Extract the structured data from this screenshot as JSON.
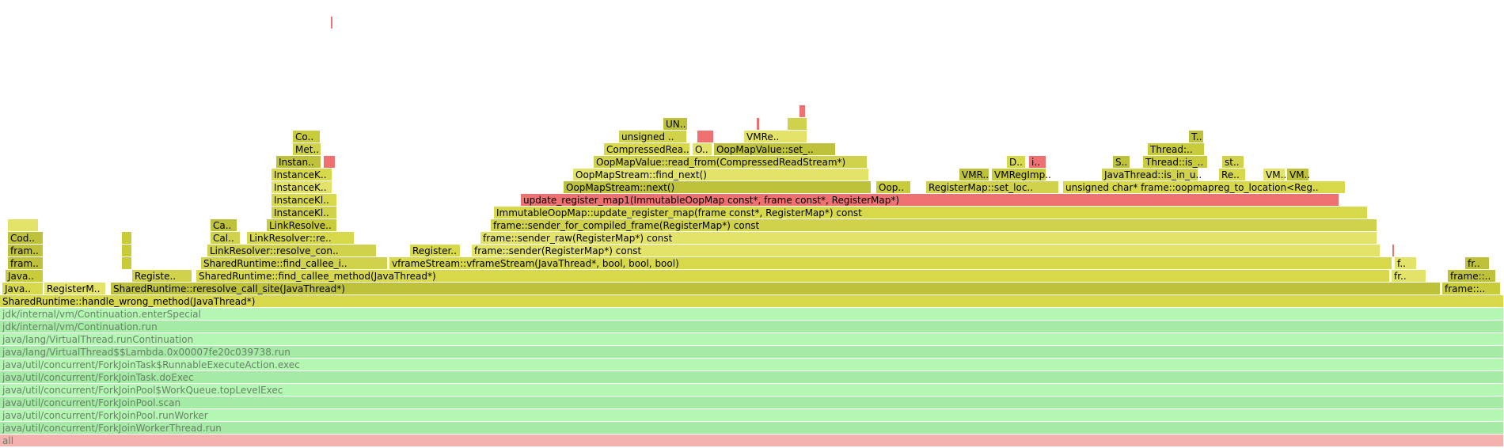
{
  "chart_data": {
    "type": "flame-graph",
    "x_unit": "fraction of samples",
    "colors": {
      "background": "#ffffff",
      "root": "#f5b1ad",
      "java": [
        "#b3f7b3",
        "#a5eba5"
      ],
      "native": [
        "#d7d94a",
        "#c9cc3a",
        "#e3e36a",
        "#d0d24c",
        "#bec23a"
      ],
      "hot": "#ee7070"
    },
    "frames": [
      {
        "label": "all",
        "depth": 0,
        "start": 0.0,
        "end": 1.0,
        "kind": "root"
      },
      {
        "label": "java/util/concurrent/ForkJoinWorkerThread.run",
        "depth": 1,
        "start": 0.0,
        "end": 1.0,
        "kind": "java"
      },
      {
        "label": "java/util/concurrent/ForkJoinPool.runWorker",
        "depth": 2,
        "start": 0.0,
        "end": 1.0,
        "kind": "java"
      },
      {
        "label": "java/util/concurrent/ForkJoinPool.scan",
        "depth": 3,
        "start": 0.0,
        "end": 1.0,
        "kind": "java"
      },
      {
        "label": "java/util/concurrent/ForkJoinPool$WorkQueue.topLevelExec",
        "depth": 4,
        "start": 0.0,
        "end": 1.0,
        "kind": "java"
      },
      {
        "label": "java/util/concurrent/ForkJoinTask.doExec",
        "depth": 5,
        "start": 0.0,
        "end": 1.0,
        "kind": "java"
      },
      {
        "label": "java/util/concurrent/ForkJoinTask$RunnableExecuteAction.exec",
        "depth": 6,
        "start": 0.0,
        "end": 1.0,
        "kind": "java"
      },
      {
        "label": "java/lang/VirtualThread$$Lambda.0x00007fe20c039738.run",
        "depth": 7,
        "start": 0.0,
        "end": 1.0,
        "kind": "java"
      },
      {
        "label": "java/lang/VirtualThread.runContinuation",
        "depth": 8,
        "start": 0.0,
        "end": 1.0,
        "kind": "java"
      },
      {
        "label": "jdk/internal/vm/Continuation.run",
        "depth": 9,
        "start": 0.0,
        "end": 1.0,
        "kind": "java"
      },
      {
        "label": "jdk/internal/vm/Continuation.enterSpecial",
        "depth": 10,
        "start": 0.0,
        "end": 1.0,
        "kind": "java"
      },
      {
        "label": "SharedRuntime::handle_wrong_method(JavaThread*)",
        "depth": 11,
        "start": 0.0,
        "end": 1.0,
        "kind": "native"
      },
      {
        "label": "Java..",
        "depth": 12,
        "start": 0.0016,
        "end": 0.0289,
        "kind": "native"
      },
      {
        "label": "RegisterM..",
        "depth": 12,
        "start": 0.0295,
        "end": 0.0705,
        "kind": "native"
      },
      {
        "label": "SharedRuntime::reresolve_call_site(JavaThread*)",
        "depth": 12,
        "start": 0.0737,
        "end": 0.9579,
        "kind": "native"
      },
      {
        "label": "frame::..",
        "depth": 12,
        "start": 0.9589,
        "end": 0.9979,
        "kind": "native"
      },
      {
        "label": "Java..",
        "depth": 13,
        "start": 0.0037,
        "end": 0.0289,
        "kind": "native"
      },
      {
        "label": "Registe..",
        "depth": 13,
        "start": 0.0879,
        "end": 0.1279,
        "kind": "native"
      },
      {
        "label": "SharedRuntime::find_callee_method(JavaThread*)",
        "depth": 13,
        "start": 0.1305,
        "end": 0.9242,
        "kind": "native"
      },
      {
        "label": "fr..",
        "depth": 13,
        "start": 0.9253,
        "end": 0.9484,
        "kind": "native"
      },
      {
        "label": "frame::..",
        "depth": 13,
        "start": 0.9626,
        "end": 0.9947,
        "kind": "native"
      },
      {
        "label": "fram..",
        "depth": 14,
        "start": 0.0053,
        "end": 0.0289,
        "kind": "native"
      },
      {
        "label": "",
        "depth": 14,
        "start": 0.0811,
        "end": 0.0879,
        "kind": "native"
      },
      {
        "label": "SharedRuntime::find_callee_i..",
        "depth": 14,
        "start": 0.1337,
        "end": 0.2579,
        "kind": "native"
      },
      {
        "label": "vframeStream::vframeStream(JavaThread*, bool, bool, bool)",
        "depth": 14,
        "start": 0.2589,
        "end": 0.9258,
        "kind": "native"
      },
      {
        "label": "f..",
        "depth": 14,
        "start": 0.9274,
        "end": 0.9421,
        "kind": "native"
      },
      {
        "label": "fr..",
        "depth": 14,
        "start": 0.9742,
        "end": 0.9905,
        "kind": "native"
      },
      {
        "label": "fram..",
        "depth": 15,
        "start": 0.0053,
        "end": 0.0289,
        "kind": "native"
      },
      {
        "label": "",
        "depth": 15,
        "start": 0.0811,
        "end": 0.0879,
        "kind": "native"
      },
      {
        "label": "LinkResolver::resolve_con..",
        "depth": 15,
        "start": 0.1379,
        "end": 0.2505,
        "kind": "native"
      },
      {
        "label": "Register..",
        "depth": 15,
        "start": 0.2726,
        "end": 0.3063,
        "kind": "native"
      },
      {
        "label": "frame::sender(RegisterMap*) const",
        "depth": 15,
        "start": 0.3137,
        "end": 0.9179,
        "kind": "native"
      },
      {
        "label": "",
        "depth": 15,
        "start": 0.9258,
        "end": 0.9274,
        "kind": "hot"
      },
      {
        "label": "Cod..",
        "depth": 16,
        "start": 0.0053,
        "end": 0.0289,
        "kind": "native"
      },
      {
        "label": "",
        "depth": 16,
        "start": 0.0811,
        "end": 0.0879,
        "kind": "native"
      },
      {
        "label": "Cal..",
        "depth": 16,
        "start": 0.14,
        "end": 0.16,
        "kind": "native"
      },
      {
        "label": "LinkResolver::re..",
        "depth": 16,
        "start": 0.1642,
        "end": 0.2358,
        "kind": "native"
      },
      {
        "label": "frame::sender_raw(RegisterMap*) const",
        "depth": 16,
        "start": 0.3195,
        "end": 0.9158,
        "kind": "native"
      },
      {
        "label": "",
        "depth": 17,
        "start": 0.0053,
        "end": 0.0258,
        "kind": "native"
      },
      {
        "label": "Ca..",
        "depth": 17,
        "start": 0.14,
        "end": 0.1579,
        "kind": "native"
      },
      {
        "label": "LinkResolve..",
        "depth": 17,
        "start": 0.1774,
        "end": 0.2242,
        "kind": "native"
      },
      {
        "label": "frame::sender_for_compiled_frame(RegisterMap*) const",
        "depth": 17,
        "start": 0.3263,
        "end": 0.9158,
        "kind": "native"
      },
      {
        "label": "InstanceKl..",
        "depth": 18,
        "start": 0.1805,
        "end": 0.2242,
        "kind": "native"
      },
      {
        "label": "ImmutableOopMap::update_register_map(frame const*, RegisterMap*) const",
        "depth": 18,
        "start": 0.3284,
        "end": 0.9095,
        "kind": "native"
      },
      {
        "label": "InstanceKl..",
        "depth": 19,
        "start": 0.1805,
        "end": 0.2242,
        "kind": "native"
      },
      {
        "label": "update_register_map1(ImmutableOopMap const*, frame const*, RegisterMap*)",
        "depth": 19,
        "start": 0.3463,
        "end": 0.8905,
        "kind": "hot"
      },
      {
        "label": "InstanceK..",
        "depth": 20,
        "start": 0.1805,
        "end": 0.2211,
        "kind": "native"
      },
      {
        "label": "OopMapStream::next()",
        "depth": 20,
        "start": 0.3747,
        "end": 0.5795,
        "kind": "native"
      },
      {
        "label": "Oop..",
        "depth": 20,
        "start": 0.5826,
        "end": 0.6058,
        "kind": "native"
      },
      {
        "label": "RegisterMap::set_loc..",
        "depth": 20,
        "start": 0.6158,
        "end": 0.7042,
        "kind": "native"
      },
      {
        "label": "unsigned char* frame::oopmapreg_to_location<Reg..",
        "depth": 20,
        "start": 0.7068,
        "end": 0.8947,
        "kind": "native"
      },
      {
        "label": "InstanceK..",
        "depth": 21,
        "start": 0.1805,
        "end": 0.2211,
        "kind": "native"
      },
      {
        "label": "OopMapStream::find_next()",
        "depth": 21,
        "start": 0.3811,
        "end": 0.5779,
        "kind": "native"
      },
      {
        "label": "VMR..",
        "depth": 21,
        "start": 0.6379,
        "end": 0.6579,
        "kind": "native"
      },
      {
        "label": "VMRegImp..",
        "depth": 21,
        "start": 0.6595,
        "end": 0.6958,
        "kind": "native"
      },
      {
        "label": "JavaThread::is_in_u..",
        "depth": 21,
        "start": 0.7326,
        "end": 0.7968,
        "kind": "native"
      },
      {
        "label": "Re..",
        "depth": 21,
        "start": 0.8105,
        "end": 0.8284,
        "kind": "native"
      },
      {
        "label": "VM..",
        "depth": 21,
        "start": 0.84,
        "end": 0.8547,
        "kind": "native"
      },
      {
        "label": "VM..",
        "depth": 21,
        "start": 0.8558,
        "end": 0.8705,
        "kind": "native"
      },
      {
        "label": "Instan..",
        "depth": 22,
        "start": 0.1837,
        "end": 0.2137,
        "kind": "native"
      },
      {
        "label": "",
        "depth": 22,
        "start": 0.2153,
        "end": 0.2232,
        "kind": "hot"
      },
      {
        "label": "OopMapValue::read_from(CompressedReadStream*)",
        "depth": 22,
        "start": 0.3947,
        "end": 0.5768,
        "kind": "native"
      },
      {
        "label": "D..",
        "depth": 22,
        "start": 0.6695,
        "end": 0.6821,
        "kind": "native"
      },
      {
        "label": "i..",
        "depth": 22,
        "start": 0.6842,
        "end": 0.6958,
        "kind": "hot"
      },
      {
        "label": "S..",
        "depth": 22,
        "start": 0.74,
        "end": 0.7516,
        "kind": "native"
      },
      {
        "label": "Thread::is_..",
        "depth": 22,
        "start": 0.76,
        "end": 0.8032,
        "kind": "native"
      },
      {
        "label": "st..",
        "depth": 22,
        "start": 0.8126,
        "end": 0.8274,
        "kind": "native"
      },
      {
        "label": "Met..",
        "depth": 23,
        "start": 0.1947,
        "end": 0.2137,
        "kind": "native"
      },
      {
        "label": "CompressedRea..",
        "depth": 23,
        "start": 0.4016,
        "end": 0.4589,
        "kind": "native"
      },
      {
        "label": "O..",
        "depth": 23,
        "start": 0.4605,
        "end": 0.4737,
        "kind": "native"
      },
      {
        "label": "OopMapValue::set_..",
        "depth": 23,
        "start": 0.4747,
        "end": 0.5558,
        "kind": "native"
      },
      {
        "label": "Thread:..",
        "depth": 23,
        "start": 0.7632,
        "end": 0.8011,
        "kind": "native"
      },
      {
        "label": "Co..",
        "depth": 24,
        "start": 0.1947,
        "end": 0.2132,
        "kind": "native"
      },
      {
        "label": "unsigned ..",
        "depth": 24,
        "start": 0.4116,
        "end": 0.4568,
        "kind": "native"
      },
      {
        "label": "",
        "depth": 24,
        "start": 0.4637,
        "end": 0.4747,
        "kind": "hot"
      },
      {
        "label": "VMRe..",
        "depth": 24,
        "start": 0.4947,
        "end": 0.5368,
        "kind": "native"
      },
      {
        "label": "T..",
        "depth": 24,
        "start": 0.7905,
        "end": 0.8005,
        "kind": "native"
      },
      {
        "label": "UN..",
        "depth": 25,
        "start": 0.4411,
        "end": 0.4574,
        "kind": "native"
      },
      {
        "label": "",
        "depth": 25,
        "start": 0.5032,
        "end": 0.5053,
        "kind": "hot"
      },
      {
        "label": "",
        "depth": 25,
        "start": 0.5237,
        "end": 0.5368,
        "kind": "native"
      },
      {
        "label": "",
        "depth": 26,
        "start": 0.5316,
        "end": 0.5358,
        "kind": "hot"
      },
      {
        "label": "",
        "depth": 33,
        "start": 0.22,
        "end": 0.2216,
        "kind": "hot"
      }
    ]
  }
}
